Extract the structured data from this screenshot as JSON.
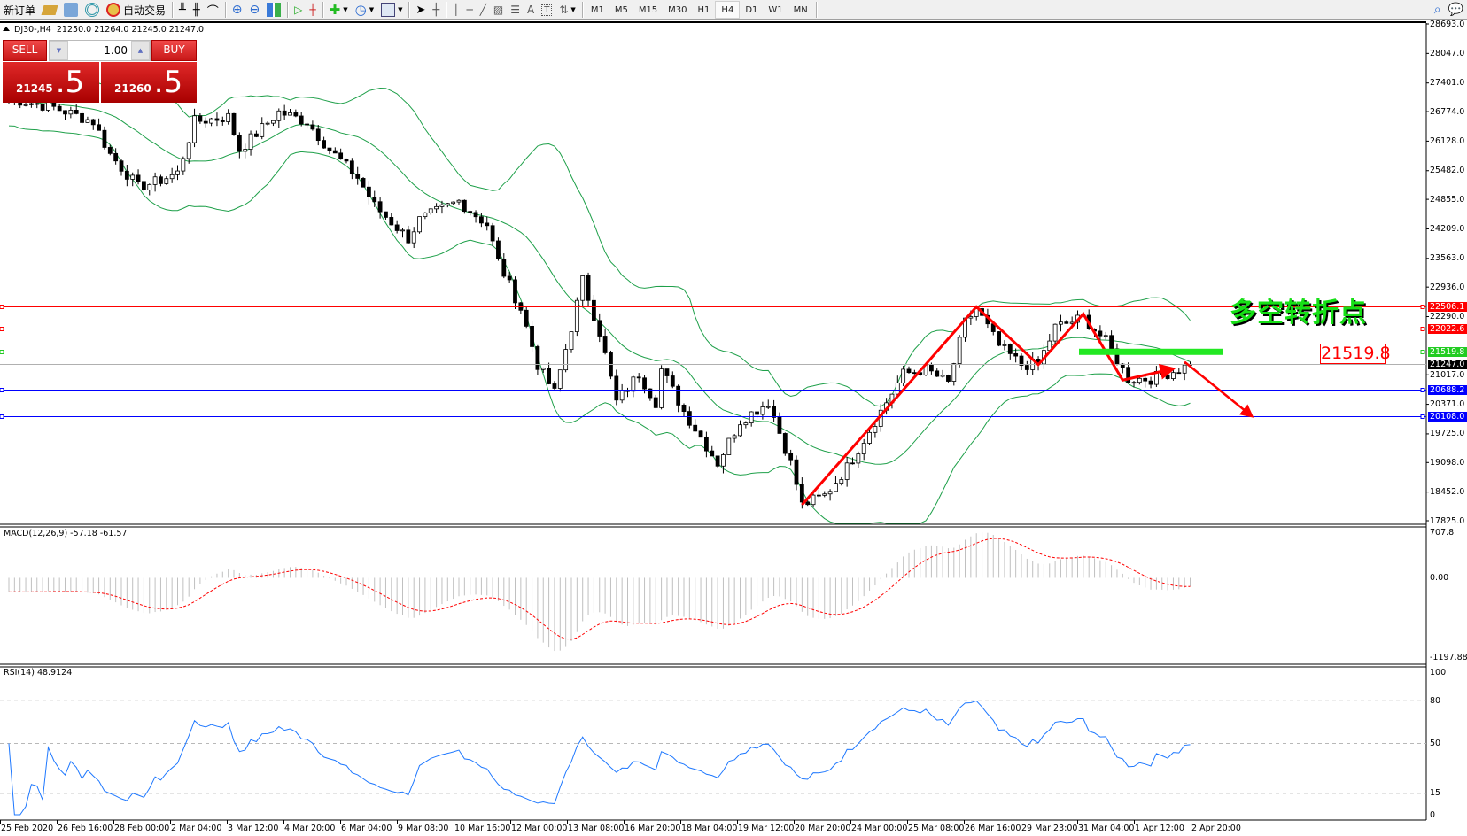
{
  "toolbar": {
    "new_order": "新订单",
    "auto_trading": "自动交易",
    "timeframes": [
      "M1",
      "M5",
      "M15",
      "M30",
      "H1",
      "H4",
      "D1",
      "W1",
      "MN"
    ],
    "active_timeframe": "H4"
  },
  "chart_header": {
    "symbol": "DJ30-,H4",
    "ohlc": "21250.0 21264.0 21245.0 21247.0"
  },
  "trade_panel": {
    "sell_label": "SELL",
    "buy_label": "BUY",
    "lot": "1.00",
    "sell_price_main": "21245",
    "sell_price_frac": ".5",
    "buy_price_main": "21260",
    "buy_price_frac": ".5"
  },
  "annotation": {
    "text": "多空转折点",
    "level_label": "21519.8"
  },
  "colors": {
    "up_line": "#ff0000",
    "green_level": "#22cc22",
    "blue_level": "#0000ff",
    "bands": "#1fa04a",
    "rsi": "#1e78ff",
    "macd_signal": "#ff0000",
    "macd_hist": "#c0c0c0"
  },
  "chart_data": {
    "type": "candlestick",
    "price_axis": {
      "ticks": [
        "28693.0",
        "28047.0",
        "27401.0",
        "26774.0",
        "26128.0",
        "25482.0",
        "24855.0",
        "24209.0",
        "23563.0",
        "22936.0",
        "22290.0",
        "21017.0",
        "20371.0",
        "19725.0",
        "19098.0",
        "18452.0",
        "17825.0"
      ],
      "range": [
        17825,
        28693
      ]
    },
    "time_axis": [
      "25 Feb 2020",
      "26 Feb 16:00",
      "28 Feb 00:00",
      "2 Mar 04:00",
      "3 Mar 12:00",
      "4 Mar 20:00",
      "6 Mar 04:00",
      "9 Mar 08:00",
      "10 Mar 16:00",
      "12 Mar 00:00",
      "13 Mar 08:00",
      "16 Mar 20:00",
      "18 Mar 04:00",
      "19 Mar 12:00",
      "20 Mar 20:00",
      "24 Mar 00:00",
      "25 Mar 08:00",
      "26 Mar 16:00",
      "29 Mar 23:00",
      "31 Mar 04:00",
      "1 Apr 12:00",
      "2 Apr 20:00"
    ],
    "close_path_bar_price": [
      [
        0,
        27065
      ],
      [
        8,
        26864
      ],
      [
        15,
        26557
      ],
      [
        18,
        25842
      ],
      [
        23,
        25125
      ],
      [
        26,
        25228
      ],
      [
        30,
        25431
      ],
      [
        33,
        26557
      ],
      [
        39,
        26659
      ],
      [
        41,
        25943
      ],
      [
        48,
        26762
      ],
      [
        53,
        26557
      ],
      [
        57,
        25943
      ],
      [
        62,
        25330
      ],
      [
        65,
        24716
      ],
      [
        71,
        24000
      ],
      [
        73,
        24408
      ],
      [
        80,
        24819
      ],
      [
        85,
        24308
      ],
      [
        87,
        23488
      ],
      [
        91,
        22466
      ],
      [
        94,
        21239
      ],
      [
        97,
        20625
      ],
      [
        100,
        22057
      ],
      [
        102,
        23080
      ],
      [
        105,
        21954
      ],
      [
        108,
        20422
      ],
      [
        112,
        21034
      ],
      [
        115,
        20422
      ],
      [
        116,
        21136
      ],
      [
        120,
        20217
      ],
      [
        126,
        19091
      ],
      [
        130,
        20011
      ],
      [
        135,
        20422
      ],
      [
        139,
        19091
      ],
      [
        141,
        18171
      ],
      [
        145,
        18375
      ],
      [
        149,
        18989
      ],
      [
        154,
        20011
      ],
      [
        159,
        21034
      ],
      [
        163,
        21136
      ],
      [
        167,
        20829
      ],
      [
        170,
        22159
      ],
      [
        172,
        22466
      ],
      [
        176,
        21648
      ],
      [
        180,
        21239
      ],
      [
        183,
        21239
      ],
      [
        186,
        22057
      ],
      [
        191,
        22262
      ],
      [
        195,
        21751
      ],
      [
        199,
        20931
      ],
      [
        203,
        20931
      ],
      [
        208,
        21136
      ],
      [
        210,
        21247
      ]
    ],
    "levels": [
      {
        "value": "22506.1",
        "color": "#ff0000"
      },
      {
        "value": "22022.6",
        "color": "#ff0000"
      },
      {
        "value": "21519.8",
        "color": "#22cc22"
      },
      {
        "value": "21247.0",
        "color": "#000000"
      },
      {
        "value": "20688.2",
        "color": "#0000ff"
      },
      {
        "value": "20108.0",
        "color": "#0000ff"
      }
    ],
    "macd": {
      "label": "MACD(12,26,9) -57.18 -61.57",
      "ticks": [
        "707.8",
        "0.00",
        "-1197.88"
      ],
      "range": [
        -1197.88,
        707.8
      ]
    },
    "rsi": {
      "label": "RSI(14) 48.9124",
      "ticks": [
        "100",
        "80",
        "50",
        "15",
        "0"
      ],
      "levels": [
        80,
        50,
        15
      ]
    },
    "trend_path_price": [
      [
        141,
        18171
      ],
      [
        172,
        22506
      ],
      [
        183,
        21239
      ],
      [
        191,
        22350
      ],
      [
        198,
        20900
      ],
      [
        207,
        21150
      ]
    ],
    "projection_price": [
      [
        209,
        21300
      ],
      [
        221,
        20108
      ]
    ],
    "resistance_zone_price": [
      [
        191,
        21519.8
      ],
      [
        216,
        21519.8
      ]
    ]
  }
}
